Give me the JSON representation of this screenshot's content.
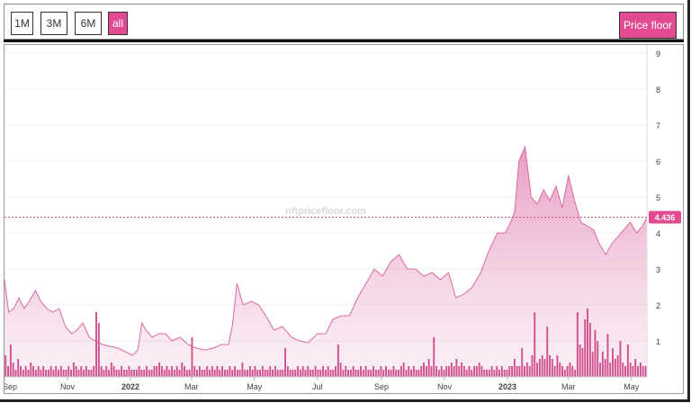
{
  "toolbar": {
    "ranges": [
      "1M",
      "3M",
      "6M",
      "all"
    ],
    "active_range": "all",
    "price_floor_label": "Price floor"
  },
  "watermark": "nftpricefloor.com",
  "colors": {
    "accent": "#e24b92",
    "line": "#d96aa3",
    "area": "#e8a3c6",
    "volume": "#d04f8e"
  },
  "chart_data": {
    "type": "area",
    "x_tick_labels": [
      "Sep",
      "Nov",
      "2022",
      "Mar",
      "May",
      "Jul",
      "Sep",
      "Nov",
      "2023",
      "Mar",
      "May"
    ],
    "y_tick_labels": [
      "1",
      "2",
      "3",
      "4",
      "5",
      "6",
      "7",
      "8",
      "9"
    ],
    "ylim": [
      0,
      9
    ],
    "grid": true,
    "current_value_label": "4.436",
    "series": [
      {
        "type": "area",
        "x": [
          "2021-09-01",
          "2021-09-05",
          "2021-09-10",
          "2021-09-15",
          "2021-09-20",
          "2021-09-25",
          "2021-10-01",
          "2021-10-06",
          "2021-10-12",
          "2021-10-18",
          "2021-10-24",
          "2021-10-30",
          "2021-11-05",
          "2021-11-10",
          "2021-11-16",
          "2021-11-22",
          "2021-11-28",
          "2021-12-05",
          "2021-12-12",
          "2021-12-20",
          "2021-12-27",
          "2022-01-03",
          "2022-01-08",
          "2022-01-12",
          "2022-01-16",
          "2022-01-22",
          "2022-01-28",
          "2022-02-04",
          "2022-02-10",
          "2022-02-18",
          "2022-02-26",
          "2022-03-06",
          "2022-03-14",
          "2022-03-22",
          "2022-03-30",
          "2022-04-06",
          "2022-04-10",
          "2022-04-14",
          "2022-04-20",
          "2022-04-28",
          "2022-05-05",
          "2022-05-12",
          "2022-05-20",
          "2022-05-28",
          "2022-06-06",
          "2022-06-14",
          "2022-06-22",
          "2022-07-01",
          "2022-07-09",
          "2022-07-16",
          "2022-07-24",
          "2022-08-01",
          "2022-08-09",
          "2022-08-17",
          "2022-08-25",
          "2022-09-02",
          "2022-09-10",
          "2022-09-18",
          "2022-09-26",
          "2022-10-04",
          "2022-10-12",
          "2022-10-20",
          "2022-10-28",
          "2022-11-05",
          "2022-11-12",
          "2022-11-20",
          "2022-11-28",
          "2022-12-06",
          "2022-12-14",
          "2022-12-22",
          "2022-12-30",
          "2023-01-04",
          "2023-01-08",
          "2023-01-12",
          "2023-01-18",
          "2023-01-24",
          "2023-01-30",
          "2023-02-05",
          "2023-02-11",
          "2023-02-17",
          "2023-02-23",
          "2023-03-01",
          "2023-03-07",
          "2023-03-13",
          "2023-03-19",
          "2023-03-25",
          "2023-03-31",
          "2023-04-06",
          "2023-04-12",
          "2023-04-18",
          "2023-04-24",
          "2023-04-30",
          "2023-05-06",
          "2023-05-12",
          "2023-05-16"
        ],
        "y": [
          2.7,
          1.8,
          1.9,
          2.2,
          1.9,
          2.1,
          2.4,
          2.1,
          1.9,
          1.8,
          1.9,
          1.4,
          1.2,
          1.3,
          1.5,
          1.1,
          1.0,
          0.9,
          0.85,
          0.8,
          0.7,
          0.6,
          0.75,
          1.5,
          1.3,
          1.1,
          1.2,
          1.2,
          1.0,
          1.1,
          0.9,
          0.8,
          0.75,
          0.8,
          0.9,
          0.9,
          1.5,
          2.6,
          2.0,
          2.1,
          2.0,
          1.7,
          1.3,
          1.4,
          1.1,
          1.0,
          0.95,
          1.2,
          1.2,
          1.6,
          1.7,
          1.7,
          2.2,
          2.6,
          3.0,
          2.8,
          3.2,
          3.4,
          3.0,
          3.0,
          2.8,
          2.9,
          2.7,
          2.9,
          2.2,
          2.3,
          2.5,
          2.9,
          3.5,
          4.0,
          4.0,
          4.3,
          4.6,
          6.0,
          6.4,
          5.0,
          4.8,
          5.2,
          4.9,
          5.3,
          4.7,
          5.6,
          4.9,
          4.3,
          4.2,
          4.1,
          3.7,
          3.4,
          3.7,
          3.9,
          4.1,
          4.3,
          4.0,
          4.2,
          4.436
        ]
      },
      {
        "type": "bar",
        "name": "volume",
        "y": [
          0.6,
          0.3,
          0.9,
          0.4,
          0.2,
          0.5,
          0.3,
          0.2,
          0.3,
          0.2,
          0.4,
          0.3,
          0.2,
          0.3,
          0.2,
          0.3,
          0.2,
          0.2,
          0.3,
          0.2,
          0.3,
          0.2,
          0.3,
          0.2,
          0.2,
          0.3,
          0.2,
          0.4,
          0.3,
          0.2,
          0.3,
          0.2,
          0.3,
          0.2,
          0.2,
          0.3,
          1.8,
          1.5,
          0.3,
          0.2,
          0.3,
          0.2,
          0.4,
          0.3,
          0.2,
          0.2,
          0.3,
          0.2,
          0.2,
          0.3,
          0.2,
          0.2,
          0.2,
          0.3,
          0.2,
          0.2,
          0.3,
          0.2,
          0.2,
          0.3,
          0.3,
          0.4,
          0.3,
          0.2,
          0.3,
          0.2,
          0.3,
          0.2,
          0.3,
          0.2,
          0.4,
          0.3,
          0.2,
          0.2,
          1.1,
          0.3,
          0.2,
          0.3,
          0.2,
          0.2,
          0.3,
          0.2,
          0.3,
          0.2,
          0.3,
          0.2,
          0.3,
          0.2,
          0.2,
          0.3,
          0.2,
          0.3,
          0.2,
          0.2,
          0.4,
          0.2,
          0.2,
          0.3,
          0.2,
          0.3,
          0.2,
          0.2,
          0.3,
          0.2,
          0.2,
          0.3,
          0.2,
          0.3,
          0.2,
          0.2,
          0.2,
          0.8,
          0.3,
          0.2,
          0.2,
          0.2,
          0.3,
          0.2,
          0.3,
          0.2,
          0.3,
          0.2,
          0.2,
          0.3,
          0.2,
          0.2,
          0.3,
          0.2,
          0.3,
          0.2,
          0.2,
          0.3,
          0.9,
          0.4,
          0.2,
          0.3,
          0.2,
          0.2,
          0.3,
          0.2,
          0.2,
          0.3,
          0.2,
          0.3,
          0.2,
          0.2,
          0.3,
          0.2,
          0.2,
          0.3,
          0.2,
          0.3,
          0.2,
          0.2,
          0.3,
          0.2,
          0.2,
          0.3,
          0.4,
          0.2,
          0.3,
          0.2,
          0.3,
          0.2,
          0.2,
          0.3,
          0.4,
          0.3,
          0.5,
          0.3,
          1.1,
          0.3,
          0.2,
          0.3,
          0.2,
          0.3,
          0.3,
          0.4,
          0.3,
          0.5,
          0.3,
          0.4,
          0.3,
          0.2,
          0.3,
          0.2,
          0.3,
          0.3,
          0.4,
          0.3,
          0.2,
          0.2,
          0.2,
          0.3,
          0.2,
          0.3,
          0.2,
          0.3,
          0.2,
          0.2,
          0.3,
          0.3,
          0.5,
          0.3,
          0.3,
          0.8,
          0.3,
          0.4,
          0.3,
          0.6,
          1.8,
          0.4,
          0.5,
          0.6,
          0.5,
          1.4,
          0.6,
          0.5,
          0.3,
          0.6,
          0.4,
          0.3,
          0.2,
          0.3,
          0.4,
          0.3,
          0.2,
          1.8,
          0.9,
          0.8,
          1.6,
          1.9,
          1.5,
          0.7,
          1.3,
          1.0,
          0.4,
          0.7,
          0.5,
          1.2,
          0.4,
          0.8,
          0.5,
          0.6,
          1.0,
          0.4,
          0.3,
          0.9,
          0.4,
          0.3,
          0.5,
          0.3,
          0.4,
          0.3,
          0.3
        ]
      }
    ]
  }
}
